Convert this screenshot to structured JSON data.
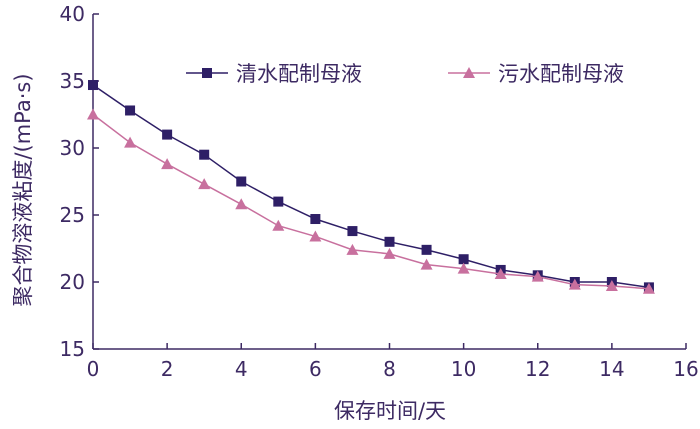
{
  "chart_data": {
    "type": "line",
    "xlabel": "保存时间/天",
    "ylabel": "聚合物溶液粘度/(mPa·s)",
    "xlim": [
      0,
      16
    ],
    "ylim": [
      15,
      40
    ],
    "xticks": [
      "0",
      "2",
      "4",
      "6",
      "8",
      "10",
      "12",
      "14",
      "16"
    ],
    "yticks": [
      "15",
      "20",
      "25",
      "30",
      "35",
      "40"
    ],
    "grid": false,
    "legend_position": "top-right",
    "x": [
      0,
      1,
      2,
      3,
      4,
      5,
      6,
      7,
      8,
      9,
      10,
      11,
      12,
      13,
      14,
      15
    ],
    "series": [
      {
        "name": "清水配制母液",
        "marker": "square",
        "color": "#2e1f66",
        "values": [
          34.7,
          32.8,
          31.0,
          29.5,
          27.5,
          26.0,
          24.7,
          23.8,
          23.0,
          22.4,
          21.7,
          20.9,
          20.5,
          20.0,
          20.0,
          19.6
        ]
      },
      {
        "name": "污水配制母液",
        "marker": "triangle",
        "color": "#c8709e",
        "values": [
          32.5,
          30.4,
          28.8,
          27.3,
          25.8,
          24.2,
          23.4,
          22.4,
          22.1,
          21.3,
          21.0,
          20.6,
          20.4,
          19.8,
          19.7,
          19.5
        ]
      }
    ]
  }
}
